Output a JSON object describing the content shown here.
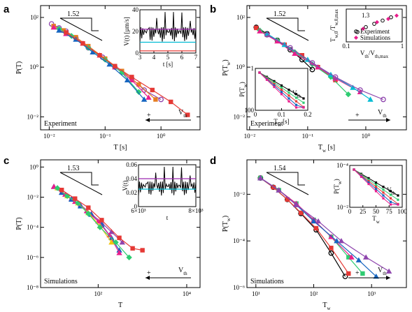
{
  "chart_data": [
    {
      "panel": "a",
      "type": "scatter",
      "xlabel": "T [s]",
      "ylabel": "P(T)",
      "xscale": "log",
      "yscale": "log",
      "xlim": [
        0.007,
        5
      ],
      "ylim": [
        0.003,
        300
      ],
      "xticks": [
        0.01,
        0.1,
        1
      ],
      "xticklabels": [
        "10⁻²",
        "10⁻¹",
        "10⁰"
      ],
      "yticks": [
        0.01,
        1,
        100
      ],
      "yticklabels": [
        "10⁻²",
        "10⁰",
        "10²"
      ],
      "slope_label": "1.52",
      "corner_label": "Experiment",
      "arrow_label": "V_th",
      "arrow_sign": "+",
      "series": [
        {
          "color": "#8e44ad",
          "marker": "circle",
          "x": [
            0.011,
            0.015,
            0.02,
            0.03,
            0.05,
            0.09,
            0.15,
            0.3,
            0.5,
            1.0
          ],
          "y": [
            55,
            38,
            28,
            15,
            6,
            2.5,
            1.0,
            0.35,
            0.12,
            0.05
          ]
        },
        {
          "color": "#e67e22",
          "marker": "square",
          "x": [
            0.012,
            0.018,
            0.03,
            0.05,
            0.1,
            0.2,
            0.4,
            0.8
          ],
          "y": [
            45,
            30,
            16,
            7,
            2.2,
            0.7,
            0.2,
            0.05
          ]
        },
        {
          "color": "#e91e8c",
          "marker": "triangle",
          "x": [
            0.012,
            0.02,
            0.04,
            0.08,
            0.15,
            0.3,
            0.6
          ],
          "y": [
            40,
            22,
            9,
            3,
            1.0,
            0.3,
            0.06
          ]
        },
        {
          "color": "#2ecc71",
          "marker": "diamond",
          "x": [
            0.015,
            0.025,
            0.05,
            0.1,
            0.2,
            0.4
          ],
          "y": [
            35,
            18,
            6,
            2.0,
            0.6,
            0.1
          ]
        },
        {
          "color": "#1565c0",
          "marker": "triangle",
          "x": [
            0.015,
            0.03,
            0.06,
            0.12,
            0.25,
            0.5
          ],
          "y": [
            30,
            13,
            4,
            1.3,
            0.3,
            0.05
          ]
        },
        {
          "color": "#e53935",
          "marker": "square",
          "x": [
            0.02,
            0.04,
            0.08,
            0.15,
            0.3,
            0.7,
            1.5,
            3.0
          ],
          "y": [
            25,
            9,
            3,
            1.1,
            0.4,
            0.12,
            0.04,
            0.012
          ]
        }
      ],
      "inset": {
        "xlabel": "t [s]",
        "ylabel": "V(t) [µm/s]",
        "xticks": [
          "3",
          "4",
          "5",
          "6",
          "7"
        ],
        "yticks": [
          "0",
          "20",
          "40"
        ],
        "thresholds": [
          {
            "value": 22,
            "color": "#9c27b0"
          },
          {
            "value": 10,
            "color": "#00bcd4"
          },
          {
            "value": 2,
            "color": "#e53935"
          }
        ]
      }
    },
    {
      "panel": "b",
      "type": "scatter",
      "xlabel": "T_w [s]",
      "ylabel": "P(T_w)",
      "xscale": "log",
      "yscale": "log",
      "xlim": [
        0.009,
        5
      ],
      "ylim": [
        0.003,
        300
      ],
      "xticks": [
        0.01,
        0.1,
        1
      ],
      "xticklabels": [
        "10⁻²",
        "10⁻¹",
        "10⁰"
      ],
      "yticks": [
        0.01,
        1,
        100
      ],
      "yticklabels": [
        "10⁻²",
        "10⁰",
        "10²"
      ],
      "slope_label": "1.52",
      "corner_label": "Experiment",
      "arrow_label": "V_th",
      "arrow_sign": "+",
      "series": [
        {
          "color": "#000000",
          "marker": "circle",
          "x": [
            0.013,
            0.02,
            0.03,
            0.05,
            0.08,
            0.12
          ],
          "y": [
            40,
            22,
            12,
            5,
            2,
            0.8
          ]
        },
        {
          "color": "#e53935",
          "marker": "square",
          "x": [
            0.013,
            0.02,
            0.04,
            0.08,
            0.15,
            0.3
          ],
          "y": [
            38,
            20,
            8,
            3,
            1.0,
            0.3
          ]
        },
        {
          "color": "#2ecc71",
          "marker": "diamond",
          "x": [
            0.015,
            0.03,
            0.06,
            0.12,
            0.25,
            0.5
          ],
          "y": [
            30,
            12,
            4,
            1.3,
            0.4,
            0.08
          ]
        },
        {
          "color": "#e91e8c",
          "marker": "triangle",
          "x": [
            0.015,
            0.03,
            0.06,
            0.15,
            0.3,
            0.8
          ],
          "y": [
            28,
            11,
            3.5,
            1.0,
            0.35,
            0.1
          ]
        },
        {
          "color": "#00bcd4",
          "marker": "triangle",
          "x": [
            0.02,
            0.04,
            0.1,
            0.25,
            0.6,
            1.2
          ],
          "y": [
            22,
            8,
            2.0,
            0.5,
            0.15,
            0.05
          ]
        },
        {
          "color": "#8e44ad",
          "marker": "circle",
          "x": [
            0.02,
            0.05,
            0.12,
            0.3,
            0.8,
            2.0
          ],
          "y": [
            20,
            6,
            1.5,
            0.4,
            0.12,
            0.05
          ]
        }
      ],
      "inset_top": {
        "xlabel": "V_th/V_th,max",
        "ylabel": "T_w,0/T_w,0,max",
        "xticks": [
          "0.1",
          "1"
        ],
        "slope_label": "1.3",
        "legend": [
          "Experiment",
          "Simulations"
        ]
      },
      "inset_bottom": {
        "xlabel": "T_w [s]",
        "ylabel": "P(T_w)",
        "xticks": [
          "0",
          "0.1",
          "0.2"
        ],
        "yticks": [
          "100",
          "1"
        ],
        "arrow_label": "V_th"
      }
    },
    {
      "panel": "c",
      "type": "scatter",
      "xlabel": "T",
      "ylabel": "P(T)",
      "xscale": "log",
      "yscale": "log",
      "xlim": [
        5,
        20000
      ],
      "ylim": [
        1e-08,
        3
      ],
      "xticks": [
        100,
        10000
      ],
      "xticklabels": [
        "10²",
        "10⁴"
      ],
      "yticks": [
        1,
        0.01,
        0.0001,
        1e-06,
        1e-08
      ],
      "yticklabels": [
        "10⁰",
        "10⁻²",
        "10⁻⁴",
        "10⁻⁶",
        "10⁻⁸"
      ],
      "slope_label": "1.53",
      "corner_label": "Simulations",
      "arrow_label": "V_th",
      "arrow_sign": "+",
      "series": [
        {
          "color": "#8e44ad",
          "marker": "triangle",
          "x": [
            10,
            15,
            25,
            40,
            70,
            120,
            200,
            350
          ],
          "y": [
            0.05,
            0.02,
            0.008,
            0.003,
            0.0008,
            0.0002,
            5e-05,
            1e-05
          ]
        },
        {
          "color": "#1565c0",
          "marker": "triangle",
          "x": [
            10,
            15,
            25,
            40,
            70,
            120,
            200,
            300
          ],
          "y": [
            0.05,
            0.02,
            0.007,
            0.0025,
            0.0007,
            0.00015,
            2e-05,
            3e-06
          ]
        },
        {
          "color": "#e91e8c",
          "marker": "triangle",
          "x": [
            10,
            18,
            30,
            55,
            100,
            180,
            300
          ],
          "y": [
            0.05,
            0.015,
            0.005,
            0.0012,
            0.00025,
            3e-05,
            2e-06
          ]
        },
        {
          "color": "#f1c40f",
          "marker": "triangle",
          "x": [
            12,
            20,
            35,
            60,
            110,
            200
          ],
          "y": [
            0.04,
            0.012,
            0.004,
            0.0009,
            0.00012,
            1e-05
          ]
        },
        {
          "color": "#2ecc71",
          "marker": "diamond",
          "x": [
            12,
            20,
            35,
            60,
            110,
            250,
            500
          ],
          "y": [
            0.04,
            0.012,
            0.004,
            0.0008,
            0.0001,
            1e-05,
            1e-06
          ]
        },
        {
          "color": "#e53935",
          "marker": "square",
          "x": [
            15,
            30,
            60,
            120,
            300,
            600,
            1000
          ],
          "y": [
            0.03,
            0.008,
            0.002,
            0.0003,
            2e-05,
            4e-06,
            3e-06
          ]
        }
      ],
      "inset": {
        "xlabel": "t",
        "ylabel": "V(t)",
        "xticks": [
          "6×10³",
          "8×10³"
        ],
        "yticks": [
          "0",
          "0.02",
          "0.04",
          "0.06"
        ],
        "thresholds": [
          {
            "value": 0.04,
            "color": "#9c27b0"
          },
          {
            "value": 0.025,
            "color": "#00bcd4"
          }
        ]
      }
    },
    {
      "panel": "d",
      "type": "scatter",
      "xlabel": "T_w",
      "ylabel": "P(T_w)",
      "xscale": "log",
      "yscale": "log",
      "xlim": [
        7,
        4000
      ],
      "ylim": [
        1e-06,
        0.3
      ],
      "xticks": [
        10,
        100,
        1000
      ],
      "xticklabels": [
        "10¹",
        "10²",
        "10³"
      ],
      "yticks": [
        0.01,
        0.0001,
        1e-06
      ],
      "yticklabels": [
        "10⁻²",
        "10⁻⁴",
        "10⁻⁶"
      ],
      "slope_label": "1.54",
      "corner_label": "Simulations",
      "arrow_label": "V_th",
      "arrow_sign": "+",
      "series": [
        {
          "color": "#000000",
          "marker": "circle",
          "x": [
            12,
            20,
            35,
            60,
            110,
            200,
            350
          ],
          "y": [
            0.05,
            0.02,
            0.006,
            0.0015,
            0.0003,
            3e-05,
            3e-06
          ]
        },
        {
          "color": "#e53935",
          "marker": "square",
          "x": [
            12,
            20,
            35,
            60,
            110,
            200,
            400
          ],
          "y": [
            0.05,
            0.02,
            0.006,
            0.0016,
            0.00035,
            5e-05,
            4e-06
          ]
        },
        {
          "color": "#2ecc71",
          "marker": "square",
          "x": [
            12,
            25,
            50,
            100,
            200,
            400,
            700
          ],
          "y": [
            0.05,
            0.015,
            0.004,
            0.0008,
            0.00015,
            2e-05,
            4e-06
          ]
        },
        {
          "color": "#e91e8c",
          "marker": "triangle",
          "x": [
            12,
            25,
            50,
            100,
            200,
            450
          ],
          "y": [
            0.05,
            0.015,
            0.004,
            0.0008,
            0.00015,
            2e-05
          ]
        },
        {
          "color": "#1565c0",
          "marker": "triangle",
          "x": [
            12,
            25,
            50,
            100,
            250,
            600,
            1200
          ],
          "y": [
            0.05,
            0.015,
            0.0035,
            0.0007,
            0.0001,
            1.5e-05,
            3e-06
          ]
        },
        {
          "color": "#8e44ad",
          "marker": "triangle",
          "x": [
            12,
            25,
            50,
            120,
            300,
            800,
            2000
          ],
          "y": [
            0.05,
            0.015,
            0.0035,
            0.0007,
            0.0001,
            2e-05,
            5e-06
          ]
        }
      ],
      "inset": {
        "xlabel": "T_w",
        "ylabel": "P(T_w)",
        "xticks": [
          "0",
          "25",
          "50",
          "75",
          "100"
        ],
        "yticks": [
          "10⁻²",
          "10⁻⁴"
        ],
        "arrow_label": "V_th"
      }
    }
  ]
}
